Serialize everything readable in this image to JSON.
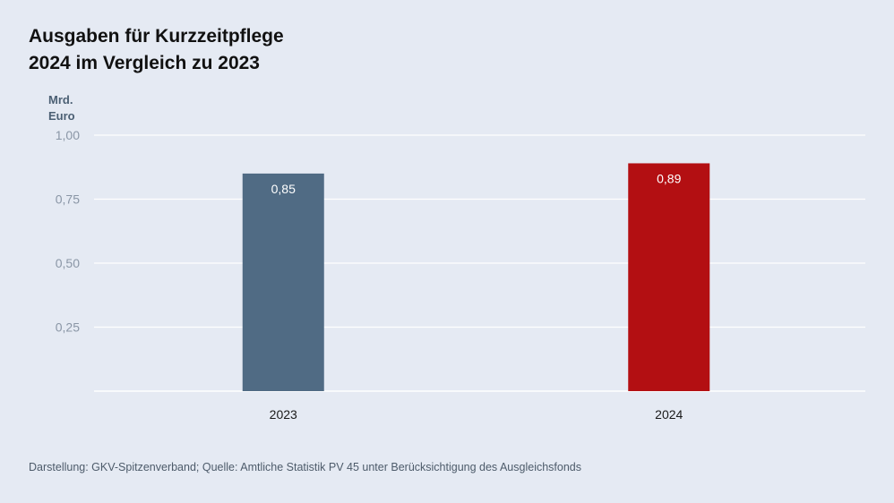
{
  "title": {
    "line1": "Ausgaben für Kurzzeitpflege",
    "line2": "2024 im Vergleich zu 2023"
  },
  "unit": {
    "line1": "Mrd.",
    "line2": "Euro"
  },
  "footer": "Darstellung: GKV-Spitzenverband; Quelle: Amtliche Statistik PV 45 unter Berücksichtigung des Ausgleichsfonds",
  "chart_data": {
    "type": "bar",
    "categories": [
      "2023",
      "2024"
    ],
    "values": [
      0.85,
      0.89
    ],
    "value_labels": [
      "0,85",
      "0,89"
    ],
    "colors": [
      "#506b84",
      "#b30f12"
    ],
    "ylabel": "Mrd. Euro",
    "ylim": [
      0,
      1.0
    ],
    "yticks": [
      0.25,
      0.5,
      0.75,
      1.0
    ],
    "ytick_labels": [
      "0,25",
      "0,50",
      "0,75",
      "1,00"
    ],
    "grid": true,
    "legend": false
  }
}
